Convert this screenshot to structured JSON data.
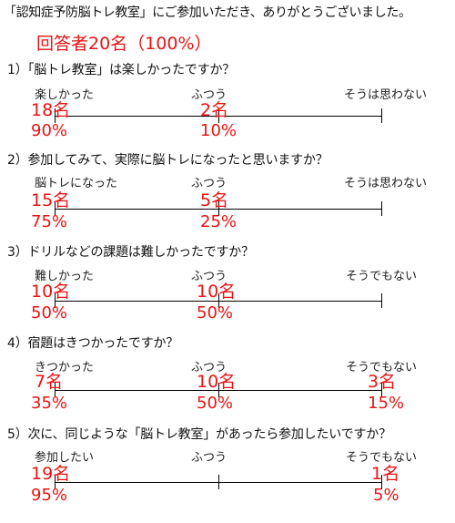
{
  "header": {
    "intro": "「認知症予防脳トレ教室」にご参加いただき、ありがとうございました。",
    "summary": "回答者20名（100%）"
  },
  "questions": [
    {
      "text": "1）「脳トレ教室」は楽しかったですか？",
      "options": [
        {
          "label": "楽しかった",
          "count": "18名",
          "percent": "90%"
        },
        {
          "label": "ふつう",
          "count": "2名",
          "percent": "10%"
        },
        {
          "label": "そうは思わない",
          "count": "",
          "percent": ""
        }
      ]
    },
    {
      "text": "2）参加してみて、実際に脳トレになったと思いますか？",
      "options": [
        {
          "label": "脳トレになった",
          "count": "15名",
          "percent": "75%"
        },
        {
          "label": "ふつう",
          "count": "5名",
          "percent": "25%"
        },
        {
          "label": "そうは思わない",
          "count": "",
          "percent": ""
        }
      ]
    },
    {
      "text": "3）ドリルなどの課題は難しかったですか？",
      "options": [
        {
          "label": "難しかった",
          "count": "10名",
          "percent": "50%"
        },
        {
          "label": "ふつう",
          "count": "10名",
          "percent": "50%"
        },
        {
          "label": "そうでもない",
          "count": "",
          "percent": ""
        }
      ]
    },
    {
      "text": "4）宿題はきつかったですか？",
      "options": [
        {
          "label": "きつかった",
          "count": "7名",
          "percent": "35%"
        },
        {
          "label": "ふつう",
          "count": "10名",
          "percent": "50%"
        },
        {
          "label": "そうでもない",
          "count": "3名",
          "percent": "15%"
        }
      ]
    },
    {
      "text": "5）次に、同じような「脳トレ教室」があったら参加したいですか？",
      "options": [
        {
          "label": "参加したい",
          "count": "19名",
          "percent": "95%"
        },
        {
          "label": "ふつう",
          "count": "",
          "percent": ""
        },
        {
          "label": "そうでもない",
          "count": "1名",
          "percent": "5%"
        }
      ]
    }
  ]
}
